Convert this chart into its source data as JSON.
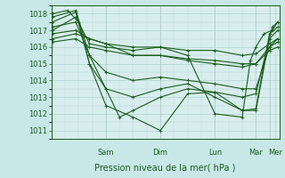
{
  "background_color": "#c8e8e8",
  "plot_bg_color": "#d8eeee",
  "grid_color": "#b0d0d0",
  "line_color": "#1a5c1a",
  "marker_color": "#1a5c1a",
  "xlabel": "Pression niveau de la mer( hPa )",
  "ylim": [
    1010.5,
    1018.5
  ],
  "yticks": [
    1011,
    1012,
    1013,
    1014,
    1015,
    1016,
    1017,
    1018
  ],
  "day_labels": [
    "Sam",
    "Dim",
    "Lun",
    "Mar",
    "Mer"
  ],
  "day_positions": [
    1.0,
    2.0,
    3.0,
    3.75,
    4.1
  ],
  "ensemble_lines": [
    {
      "x": [
        0.02,
        0.45,
        0.7,
        1.0,
        1.5,
        2.0,
        2.5,
        3.0,
        3.5,
        3.75,
        4.0,
        4.15
      ],
      "y": [
        1017.5,
        1018.1,
        1015.0,
        1012.5,
        1011.8,
        1011.0,
        1013.2,
        1013.3,
        1012.2,
        1012.2,
        1016.5,
        1017.0
      ]
    },
    {
      "x": [
        0.02,
        0.45,
        0.7,
        1.0,
        1.5,
        2.0,
        2.5,
        3.0,
        3.5,
        3.75,
        4.0,
        4.15
      ],
      "y": [
        1017.8,
        1018.2,
        1015.5,
        1013.5,
        1013.0,
        1013.5,
        1013.8,
        1013.0,
        1012.2,
        1012.3,
        1016.8,
        1017.2
      ]
    },
    {
      "x": [
        0.02,
        0.45,
        0.7,
        1.0,
        1.5,
        2.0,
        2.5,
        3.0,
        3.5,
        3.75,
        4.0,
        4.15
      ],
      "y": [
        1016.5,
        1016.8,
        1016.5,
        1016.2,
        1016.0,
        1016.0,
        1015.8,
        1015.8,
        1015.5,
        1015.6,
        1016.2,
        1016.5
      ]
    },
    {
      "x": [
        0.02,
        0.45,
        0.7,
        1.0,
        1.5,
        2.0,
        2.5,
        3.0,
        3.5,
        3.75,
        4.0,
        4.15
      ],
      "y": [
        1016.8,
        1017.0,
        1016.5,
        1016.2,
        1015.5,
        1015.5,
        1015.2,
        1015.0,
        1014.8,
        1015.0,
        1016.0,
        1016.3
      ]
    },
    {
      "x": [
        0.02,
        0.45,
        0.7,
        1.0,
        1.5,
        2.0,
        2.5,
        3.0,
        3.5,
        3.75,
        4.0,
        4.15
      ],
      "y": [
        1017.2,
        1017.5,
        1015.5,
        1014.5,
        1014.0,
        1014.2,
        1014.0,
        1013.8,
        1013.5,
        1013.5,
        1016.0,
        1016.5
      ]
    },
    {
      "x": [
        0.02,
        0.45,
        0.7,
        1.0,
        1.5,
        2.0,
        2.5,
        3.0,
        3.5,
        3.75,
        4.0,
        4.15
      ],
      "y": [
        1016.3,
        1016.5,
        1016.0,
        1015.8,
        1015.5,
        1015.5,
        1015.3,
        1015.2,
        1015.0,
        1015.0,
        1015.8,
        1016.0
      ]
    },
    {
      "x": [
        0.02,
        0.45,
        0.7,
        1.0,
        1.5,
        2.0,
        2.5,
        3.0,
        3.5,
        3.65,
        3.75,
        3.9,
        4.05,
        4.15
      ],
      "y": [
        1017.0,
        1017.8,
        1016.2,
        1016.0,
        1015.8,
        1016.0,
        1015.5,
        1012.0,
        1011.8,
        1015.2,
        1016.0,
        1016.8,
        1017.0,
        1017.5
      ]
    },
    {
      "x": [
        0.02,
        0.3,
        0.5,
        0.7,
        1.0,
        1.25,
        1.5,
        2.0,
        2.5,
        3.0,
        3.5,
        3.75,
        4.05,
        4.15
      ],
      "y": [
        1018.0,
        1018.2,
        1017.5,
        1015.0,
        1013.5,
        1011.8,
        1012.2,
        1013.0,
        1013.5,
        1013.3,
        1013.0,
        1013.2,
        1017.2,
        1017.5
      ]
    }
  ]
}
